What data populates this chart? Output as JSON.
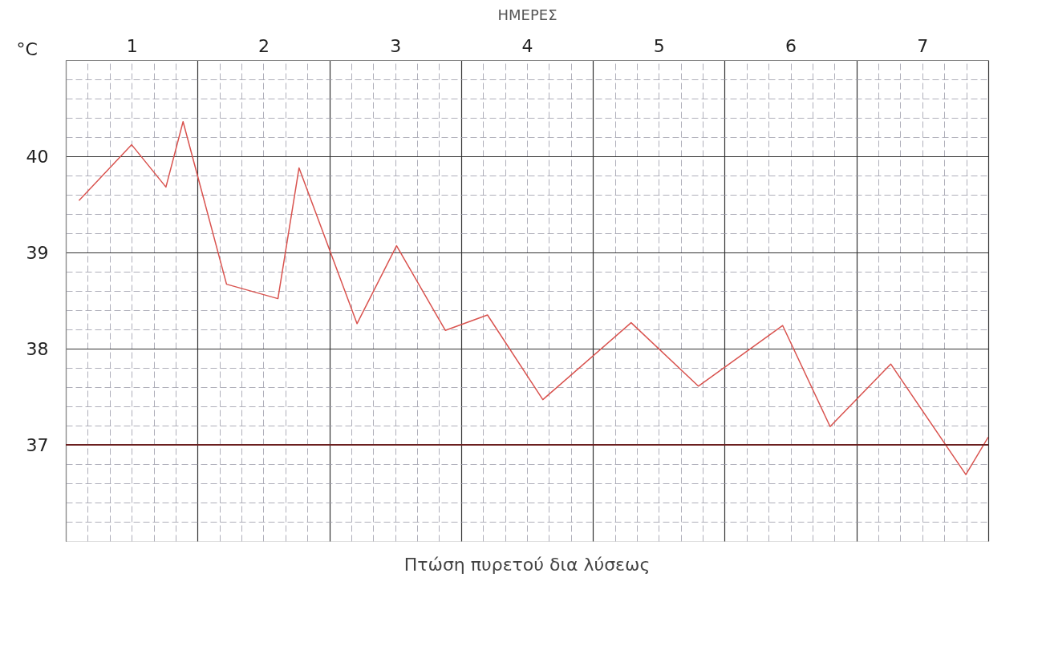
{
  "chart_data": {
    "type": "line",
    "xlabel": "ΗΜΕΡΕΣ",
    "ylabel": "°C",
    "x": [
      0.1,
      0.5,
      0.76,
      0.89,
      1.22,
      1.61,
      1.77,
      2.21,
      2.51,
      2.88,
      3.2,
      3.62,
      4.29,
      4.8,
      5.44,
      5.8,
      6.26,
      6.83,
      7.0
    ],
    "series": [
      {
        "color": "#d9534f",
        "values": [
          39.54,
          40.12,
          39.68,
          40.36,
          38.67,
          38.52,
          39.88,
          38.26,
          39.07,
          38.19,
          38.35,
          37.47,
          38.27,
          37.61,
          38.24,
          37.19,
          37.84,
          36.69,
          37.08
        ]
      }
    ],
    "xlim": [
      0,
      7
    ],
    "ylim": [
      36,
      41
    ],
    "xticks": [
      {
        "value": 0,
        "label": null
      },
      {
        "value": 0.167,
        "label": null
      },
      {
        "value": 0.333,
        "label": null
      },
      {
        "value": 0.5,
        "label": "1"
      },
      {
        "value": 0.667,
        "label": null
      },
      {
        "value": 0.833,
        "label": null
      },
      {
        "value": 1,
        "label": null
      },
      {
        "value": 1.167,
        "label": null
      },
      {
        "value": 1.333,
        "label": null
      },
      {
        "value": 1.5,
        "label": "2"
      },
      {
        "value": 1.667,
        "label": null
      },
      {
        "value": 1.833,
        "label": null
      },
      {
        "value": 2,
        "label": null
      },
      {
        "value": 2.167,
        "label": null
      },
      {
        "value": 2.333,
        "label": null
      },
      {
        "value": 2.5,
        "label": "3"
      },
      {
        "value": 2.667,
        "label": null
      },
      {
        "value": 2.833,
        "label": null
      },
      {
        "value": 3,
        "label": null
      },
      {
        "value": 3.167,
        "label": null
      },
      {
        "value": 3.333,
        "label": null
      },
      {
        "value": 3.5,
        "label": "4"
      },
      {
        "value": 3.667,
        "label": null
      },
      {
        "value": 3.833,
        "label": null
      },
      {
        "value": 4,
        "label": null
      },
      {
        "value": 4.167,
        "label": null
      },
      {
        "value": 4.333,
        "label": null
      },
      {
        "value": 4.5,
        "label": "5"
      },
      {
        "value": 4.667,
        "label": null
      },
      {
        "value": 4.833,
        "label": null
      },
      {
        "value": 5,
        "label": null
      },
      {
        "value": 5.167,
        "label": null
      },
      {
        "value": 5.333,
        "label": null
      },
      {
        "value": 5.5,
        "label": "6"
      },
      {
        "value": 5.667,
        "label": null
      },
      {
        "value": 5.833,
        "label": null
      },
      {
        "value": 6,
        "label": null
      },
      {
        "value": 6.167,
        "label": null
      },
      {
        "value": 6.333,
        "label": null
      },
      {
        "value": 6.5,
        "label": "7"
      },
      {
        "value": 6.667,
        "label": null
      },
      {
        "value": 6.833,
        "label": null
      },
      {
        "value": 7,
        "label": null
      }
    ],
    "yticks": [
      {
        "value": 36.2,
        "label": null
      },
      {
        "value": 36.4,
        "label": null
      },
      {
        "value": 36.6,
        "label": null
      },
      {
        "value": 36.8,
        "label": null
      },
      37,
      {
        "value": 37.2,
        "label": null
      },
      {
        "value": 37.4,
        "label": null
      },
      {
        "value": 37.6,
        "label": null
      },
      {
        "value": 37.8,
        "label": null
      },
      38,
      {
        "value": 38.2,
        "label": null
      },
      {
        "value": 38.4,
        "label": null
      },
      {
        "value": 38.6,
        "label": null
      },
      {
        "value": 38.8,
        "label": null
      },
      39,
      {
        "value": 39.2,
        "label": null
      },
      {
        "value": 39.4,
        "label": null
      },
      {
        "value": 39.6,
        "label": null
      },
      {
        "value": 39.8,
        "label": null
      },
      40,
      {
        "value": 40.2,
        "label": null
      },
      {
        "value": 40.4,
        "label": null
      },
      {
        "value": 40.6,
        "label": null
      },
      {
        "value": 40.8,
        "label": null
      }
    ],
    "ref_lines": [
      {
        "axis": "y",
        "value": 37,
        "color": "#6b1f1f"
      }
    ],
    "grid": true,
    "marker": "none",
    "line_style": "solid",
    "annotations": [
      "Πτώση πυρετού δια λύσεως"
    ]
  }
}
